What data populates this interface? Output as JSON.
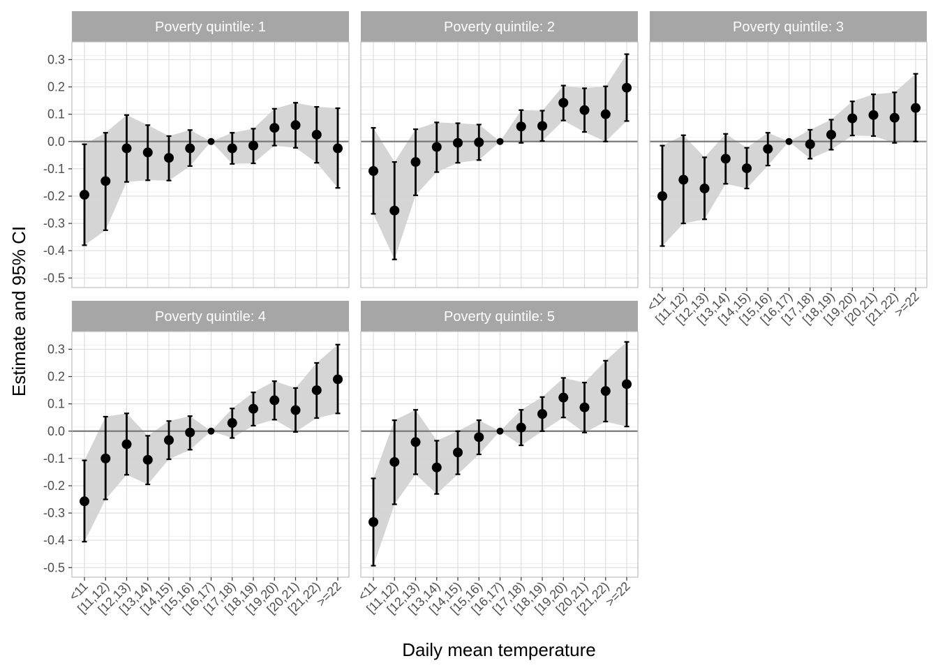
{
  "chart_data": {
    "type": "scatter",
    "facet_label_prefix": "Poverty quintile: ",
    "xlabel": "Daily mean temperature",
    "ylabel": "Estimate and 95% CI",
    "categories": [
      "<11",
      "[11,12)",
      "[12,13)",
      "[13,14)",
      "[14,15)",
      "[15,16)",
      "[16,17)",
      "[17,18)",
      "[18,19)",
      "[19,20)",
      "[20,21)",
      "[21,22)",
      ">=22"
    ],
    "y_ticks": [
      "0.3",
      "0.2",
      "0.1",
      "0.0",
      "-0.1",
      "-0.2",
      "-0.3",
      "-0.4",
      "-0.5"
    ],
    "ylim": [
      -0.535,
      0.365
    ],
    "grid": true,
    "reference_line": 0,
    "panels": [
      {
        "quintile": "1",
        "estimate": [
          -0.195,
          -0.145,
          -0.025,
          -0.04,
          -0.06,
          -0.025,
          0.0,
          -0.025,
          -0.015,
          0.05,
          0.06,
          0.025,
          -0.025
        ],
        "lower": [
          -0.38,
          -0.325,
          -0.148,
          -0.142,
          -0.143,
          -0.09,
          0.0,
          -0.082,
          -0.08,
          -0.015,
          -0.023,
          -0.078,
          -0.17
        ],
        "upper": [
          -0.01,
          0.032,
          0.097,
          0.06,
          0.02,
          0.042,
          0.0,
          0.032,
          0.047,
          0.12,
          0.142,
          0.127,
          0.122
        ]
      },
      {
        "quintile": "2",
        "estimate": [
          -0.108,
          -0.253,
          -0.075,
          -0.02,
          -0.005,
          -0.003,
          0.0,
          0.055,
          0.057,
          0.142,
          0.115,
          0.1,
          0.197
        ],
        "lower": [
          -0.265,
          -0.432,
          -0.197,
          -0.112,
          -0.078,
          -0.068,
          0.0,
          -0.005,
          0.002,
          0.077,
          0.035,
          0.0,
          0.075
        ],
        "upper": [
          0.05,
          -0.075,
          0.045,
          0.07,
          0.067,
          0.062,
          0.0,
          0.115,
          0.113,
          0.205,
          0.195,
          0.202,
          0.32
        ]
      },
      {
        "quintile": "3",
        "estimate": [
          -0.2,
          -0.14,
          -0.172,
          -0.063,
          -0.098,
          -0.027,
          0.0,
          -0.01,
          0.025,
          0.085,
          0.097,
          0.087,
          0.123
        ],
        "lower": [
          -0.383,
          -0.3,
          -0.285,
          -0.155,
          -0.172,
          -0.088,
          0.0,
          -0.063,
          -0.03,
          0.022,
          0.02,
          -0.005,
          0.0
        ],
        "upper": [
          -0.015,
          0.023,
          -0.058,
          0.028,
          -0.023,
          0.032,
          0.0,
          0.043,
          0.08,
          0.147,
          0.173,
          0.18,
          0.248
        ]
      },
      {
        "quintile": "4",
        "estimate": [
          -0.257,
          -0.1,
          -0.048,
          -0.105,
          -0.033,
          -0.005,
          0.0,
          0.03,
          0.082,
          0.113,
          0.077,
          0.15,
          0.19
        ],
        "lower": [
          -0.405,
          -0.25,
          -0.16,
          -0.195,
          -0.103,
          -0.068,
          0.0,
          -0.025,
          0.02,
          0.042,
          -0.003,
          0.048,
          0.065
        ],
        "upper": [
          -0.107,
          0.053,
          0.065,
          -0.017,
          0.037,
          0.055,
          0.0,
          0.083,
          0.142,
          0.183,
          0.158,
          0.25,
          0.317
        ]
      },
      {
        "quintile": "5",
        "estimate": [
          -0.333,
          -0.113,
          -0.04,
          -0.133,
          -0.078,
          -0.022,
          0.0,
          0.013,
          0.063,
          0.123,
          0.087,
          0.147,
          0.172
        ],
        "lower": [
          -0.493,
          -0.268,
          -0.158,
          -0.23,
          -0.158,
          -0.085,
          0.0,
          -0.052,
          0.0,
          0.05,
          -0.005,
          0.035,
          0.017
        ],
        "upper": [
          -0.173,
          0.04,
          0.078,
          -0.035,
          0.0,
          0.04,
          0.0,
          0.078,
          0.125,
          0.195,
          0.178,
          0.258,
          0.327
        ]
      }
    ]
  }
}
